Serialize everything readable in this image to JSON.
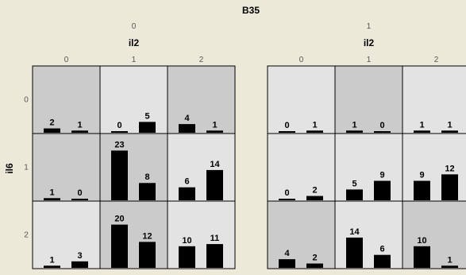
{
  "chart_data": {
    "type": "bar",
    "title": "B35",
    "panel_var": "il2",
    "row_var": "il6",
    "panels": [
      "0",
      "1"
    ],
    "columns": [
      "0",
      "1",
      "2"
    ],
    "rows": [
      "0",
      "1",
      "2"
    ],
    "ymax": 25,
    "cell_colors": {
      "light": "#e3e3e3",
      "dark": "#cbcbcb"
    },
    "bar_color": "#000000",
    "cells": [
      [
        [
          {
            "values": [
              2,
              1
            ],
            "shade": "dark"
          },
          {
            "values": [
              0,
              5
            ],
            "shade": "light"
          },
          {
            "values": [
              4,
              1
            ],
            "shade": "dark"
          }
        ],
        [
          {
            "values": [
              1,
              0
            ],
            "shade": "dark"
          },
          {
            "values": [
              23,
              8
            ],
            "shade": "dark"
          },
          {
            "values": [
              6,
              14
            ],
            "shade": "light"
          }
        ],
        [
          {
            "values": [
              1,
              3
            ],
            "shade": "light"
          },
          {
            "values": [
              20,
              12
            ],
            "shade": "dark"
          },
          {
            "values": [
              10,
              11
            ],
            "shade": "light"
          }
        ]
      ],
      [
        [
          {
            "values": [
              0,
              1
            ],
            "shade": "light"
          },
          {
            "values": [
              1,
              0
            ],
            "shade": "dark"
          },
          {
            "values": [
              1,
              1
            ],
            "shade": "light"
          }
        ],
        [
          {
            "values": [
              0,
              2
            ],
            "shade": "light"
          },
          {
            "values": [
              5,
              9
            ],
            "shade": "light"
          },
          {
            "values": [
              9,
              12
            ],
            "shade": "light"
          }
        ],
        [
          {
            "values": [
              4,
              2
            ],
            "shade": "dark"
          },
          {
            "values": [
              14,
              6
            ],
            "shade": "light"
          },
          {
            "values": [
              10,
              1
            ],
            "shade": "dark"
          }
        ]
      ]
    ]
  }
}
